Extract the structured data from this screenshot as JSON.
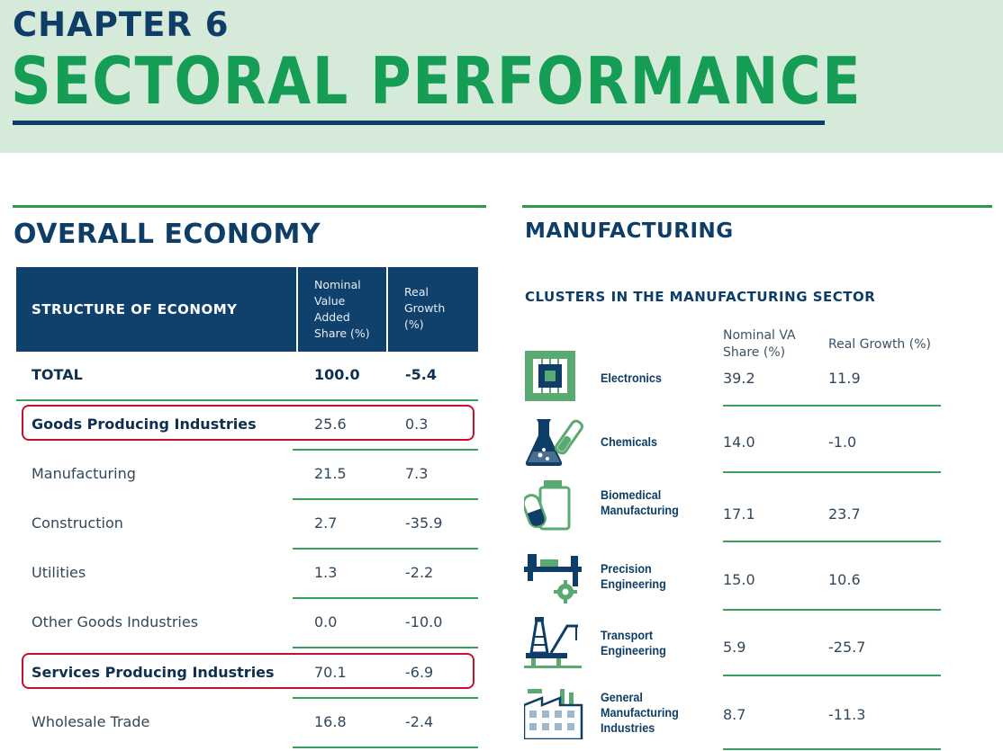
{
  "header": {
    "chapter": "CHAPTER 6",
    "title": "SECTORAL PERFORMANCE"
  },
  "overall": {
    "section_title": "OVERALL ECONOMY",
    "table": {
      "header_main": "STRUCTURE OF ECONOMY",
      "header_col1": [
        "Nominal",
        "Value",
        "Added",
        "Share (%)"
      ],
      "header_col2": [
        "Real",
        "Growth",
        "(%)"
      ],
      "rows": [
        {
          "label": "TOTAL",
          "share": "100.0",
          "growth": "-5.4",
          "bold": true,
          "highlight": false
        },
        {
          "label": "Goods Producing Industries",
          "share": "25.6",
          "growth": "0.3",
          "bold": true,
          "highlight": true
        },
        {
          "label": "Manufacturing",
          "share": "21.5",
          "growth": "7.3",
          "bold": false,
          "highlight": false
        },
        {
          "label": "Construction",
          "share": "2.7",
          "growth": "-35.9",
          "bold": false,
          "highlight": false
        },
        {
          "label": "Utilities",
          "share": "1.3",
          "growth": "-2.2",
          "bold": false,
          "highlight": false
        },
        {
          "label": "Other Goods Industries",
          "share": "0.0",
          "growth": "-10.0",
          "bold": false,
          "highlight": false
        },
        {
          "label": "Services Producing Industries",
          "share": "70.1",
          "growth": "-6.9",
          "bold": true,
          "highlight": true
        },
        {
          "label": "Wholesale Trade",
          "share": "16.8",
          "growth": "-2.4",
          "bold": false,
          "highlight": false
        }
      ]
    }
  },
  "manufacturing": {
    "section_title": "MANUFACTURING",
    "subtitle": "CLUSTERS IN THE MANUFACTURING SECTOR",
    "col1_header": [
      "Nominal VA",
      "Share (%)"
    ],
    "col2_header": "Real Growth (%)",
    "clusters": [
      {
        "icon": "electronics-chip-icon",
        "name": [
          "Electronics"
        ],
        "share": "39.2",
        "growth": "11.9"
      },
      {
        "icon": "chemicals-flask-icon",
        "name": [
          "Chemicals"
        ],
        "share": "14.0",
        "growth": "-1.0"
      },
      {
        "icon": "biomedical-pills-icon",
        "name": [
          "Biomedical",
          "Manufacturing"
        ],
        "share": "17.1",
        "growth": "23.7"
      },
      {
        "icon": "precision-engineering-gear-icon",
        "name": [
          "Precision",
          "Engineering"
        ],
        "share": "15.0",
        "growth": "10.6"
      },
      {
        "icon": "transport-engineering-rig-icon",
        "name": [
          "Transport",
          "Engineering"
        ],
        "share": "5.9",
        "growth": "-25.7"
      },
      {
        "icon": "general-manufacturing-factory-icon",
        "name": [
          "General",
          "Manufacturing",
          "Industries"
        ],
        "share": "8.7",
        "growth": "-11.3"
      }
    ]
  },
  "colors": {
    "navy": "#0e3e67",
    "green_title": "#159d56",
    "header_band": "#d6ead9",
    "rule_green": "#38a05a",
    "highlight_red": "#c8102e"
  }
}
